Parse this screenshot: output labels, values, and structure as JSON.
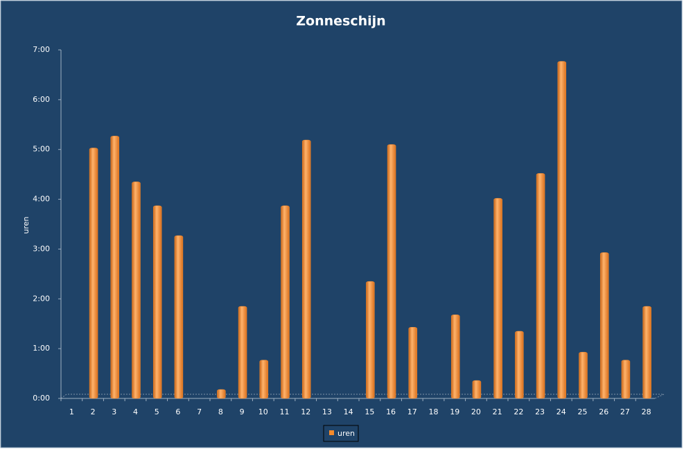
{
  "chart_data": {
    "type": "bar",
    "title": "Zonneschijn",
    "y_label": "uren",
    "categories": [
      "1",
      "2",
      "3",
      "4",
      "5",
      "6",
      "7",
      "8",
      "9",
      "10",
      "11",
      "12",
      "13",
      "14",
      "15",
      "16",
      "17",
      "18",
      "19",
      "20",
      "21",
      "22",
      "23",
      "24",
      "25",
      "26",
      "27",
      "28"
    ],
    "series": [
      {
        "name": "uren",
        "color": "#f58a2a",
        "values": [
          0,
          5.03,
          5.27,
          4.35,
          3.87,
          3.27,
          0,
          0.18,
          1.85,
          0.77,
          3.87,
          5.19,
          0,
          0,
          2.35,
          5.1,
          1.43,
          0,
          1.68,
          0.36,
          4.02,
          1.35,
          4.52,
          6.77,
          0.93,
          2.93,
          0.77,
          1.85
        ]
      }
    ],
    "ylim": [
      0,
      7
    ],
    "yticks": [
      {
        "value": 0,
        "label": "0:00"
      },
      {
        "value": 1,
        "label": "1:00"
      },
      {
        "value": 2,
        "label": "2:00"
      },
      {
        "value": 3,
        "label": "3:00"
      },
      {
        "value": 4,
        "label": "4:00"
      },
      {
        "value": 5,
        "label": "5:00"
      },
      {
        "value": 6,
        "label": "6:00"
      },
      {
        "value": 7,
        "label": "7:00"
      }
    ],
    "grid": false,
    "legend": "bottom"
  }
}
